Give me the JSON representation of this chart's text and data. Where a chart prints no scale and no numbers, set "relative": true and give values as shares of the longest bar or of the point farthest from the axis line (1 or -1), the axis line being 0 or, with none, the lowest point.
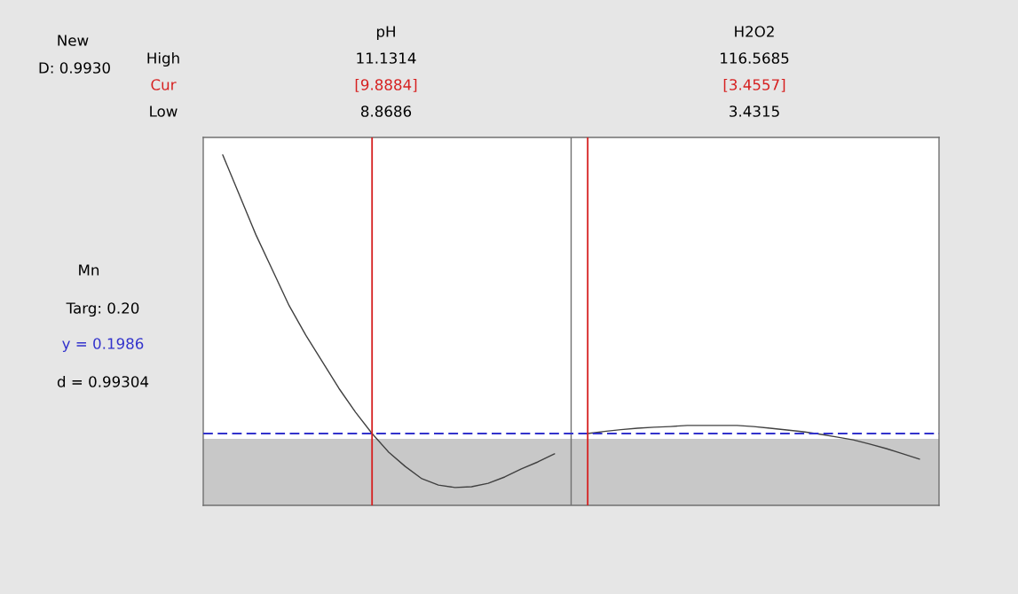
{
  "chart_data": {
    "type": "line",
    "relative": true,
    "annotations": [
      "New",
      "D: 0.9930",
      "High",
      "Cur",
      "Low",
      "Mn",
      "Targ: 0.20",
      "y = 0.1986",
      "d = 0.99304",
      "pH",
      "11.1314",
      "[9.8884]",
      "8.8686",
      "H2O2",
      "116.5685",
      "[3.4557]",
      "3.4315"
    ],
    "categories": [
      null,
      null,
      null,
      null,
      null,
      null,
      null,
      null,
      null,
      null,
      null,
      null,
      null,
      null,
      null,
      null,
      null,
      null,
      null,
      null,
      null,
      null,
      null,
      null,
      null,
      null,
      null,
      null,
      null,
      null,
      null,
      null,
      null,
      null,
      null,
      null,
      null,
      null,
      null,
      null,
      null,
      null,
      null
    ],
    "series": [
      {
        "color": "#404040",
        "values": [
          1.0,
          0.886,
          0.772,
          0.671,
          0.57,
          0.486,
          0.41,
          0.334,
          0.266,
          0.205,
          0.152,
          0.111,
          0.076,
          0.058,
          0.051,
          0.053,
          0.063,
          0.081,
          0.104,
          0.124,
          0.147,
          null,
          null,
          null,
          null,
          null,
          null,
          null,
          null,
          null,
          null,
          null,
          null,
          null,
          null,
          null,
          null,
          null,
          null,
          null,
          null,
          null,
          null
        ]
      },
      {
        "color": "#404040",
        "values": [
          null,
          null,
          null,
          null,
          null,
          null,
          null,
          null,
          null,
          null,
          null,
          null,
          null,
          null,
          null,
          null,
          null,
          null,
          null,
          null,
          null,
          null,
          0.205,
          0.211,
          0.216,
          0.22,
          0.223,
          0.225,
          0.228,
          0.228,
          0.228,
          0.228,
          0.225,
          0.22,
          0.215,
          0.21,
          0.203,
          0.195,
          0.187,
          0.175,
          0.162,
          0.147,
          0.132
        ]
      }
    ],
    "ref_lines": [
      {
        "axis": "y",
        "value": 0.205,
        "color": "#3333cc",
        "line_style": "dashed"
      }
    ],
    "bands": [
      {
        "axis": "y",
        "from": 0,
        "to": 0.19,
        "color": "#c8c8c8"
      }
    ]
  }
}
